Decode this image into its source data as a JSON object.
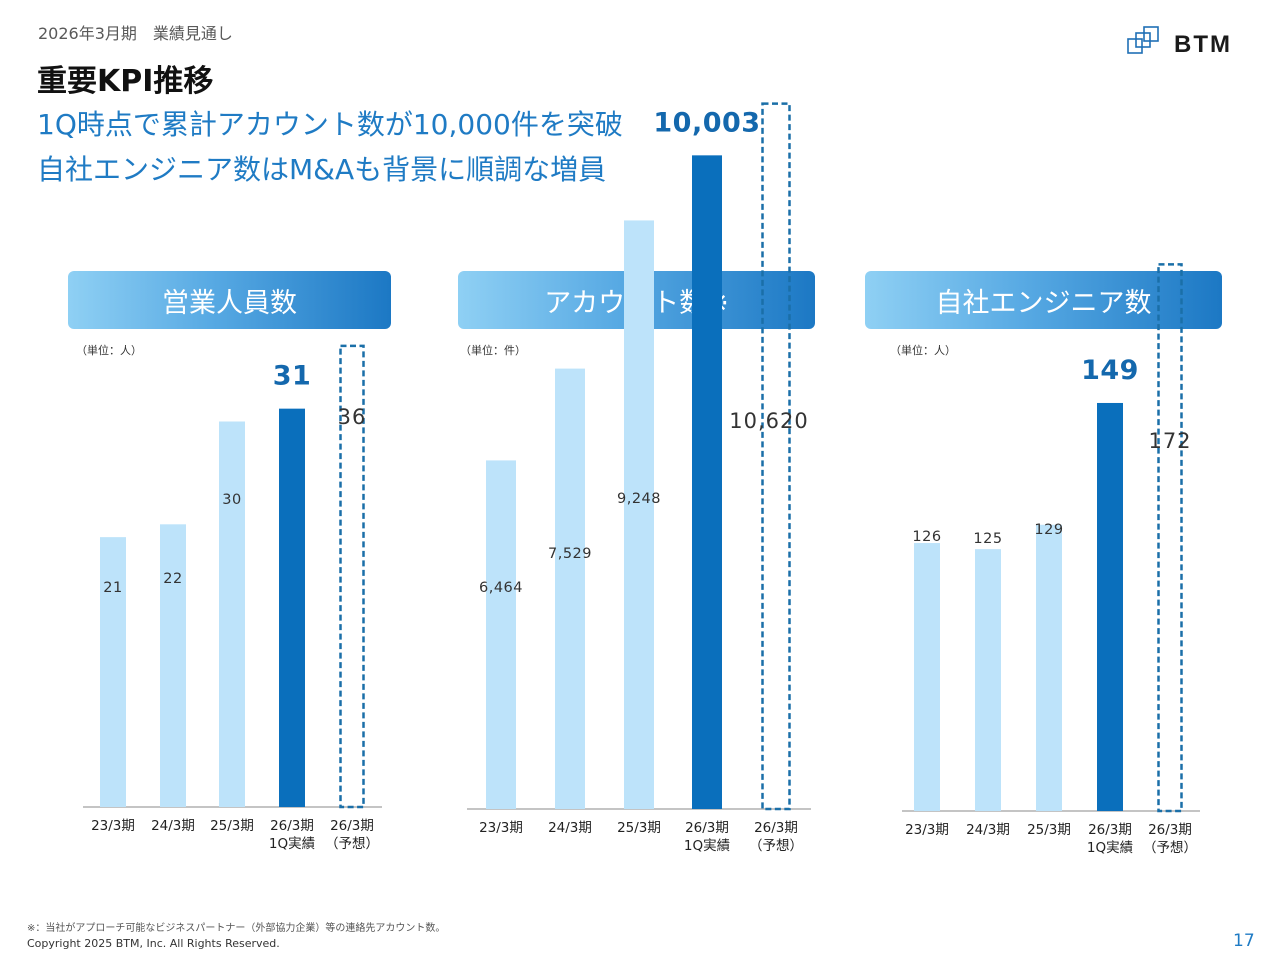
{
  "header": {
    "breadcrumb": "2026年3月期　業績見通し",
    "title": "重要KPI推移",
    "headline_1": "1Q時点で累計アカウント数が10,000件を突破",
    "headline_2": "自社エンジニア数はM&Aも背景に順調な増員",
    "logo_text": "BTM"
  },
  "colors": {
    "past_bar": "#bde3fa",
    "actual_bar": "#0a6fbc",
    "forecast_outline": "#1a6fa8",
    "highlight_text": "#1468ad"
  },
  "panels": [
    {
      "header": "営業人員数",
      "unit": "（単位：人）"
    },
    {
      "header": "アカウント数※",
      "unit": "（単位：件）"
    },
    {
      "header": "自社エンジニア数",
      "unit": "（単位：人）"
    }
  ],
  "chart_data": [
    {
      "type": "bar",
      "title": "営業人員数",
      "unit": "（単位：人）",
      "categories": [
        "23/3期",
        "24/3期",
        "25/3期",
        "26/3期\n1Q実績",
        "26/3期\n（予想）"
      ],
      "values": [
        21,
        22,
        30,
        31,
        36
      ],
      "labels": [
        "21",
        "22",
        "30",
        "31",
        "36"
      ],
      "bar_styles": [
        "past",
        "past",
        "past",
        "actual",
        "forecast"
      ]
    },
    {
      "type": "bar",
      "title": "アカウント数※",
      "unit": "（単位：件）",
      "categories": [
        "23/3期",
        "24/3期",
        "25/3期",
        "26/3期\n1Q実績",
        "26/3期\n（予想）"
      ],
      "values": [
        6464,
        7529,
        9248,
        10003,
        10620
      ],
      "labels": [
        "6,464",
        "7,529",
        "9,248",
        "10,003",
        "10,620"
      ],
      "bar_styles": [
        "past",
        "past",
        "past",
        "actual",
        "forecast"
      ]
    },
    {
      "type": "bar",
      "title": "自社エンジニア数",
      "unit": "（単位：人）",
      "categories": [
        "23/3期",
        "24/3期",
        "25/3期",
        "26/3期\n1Q実績",
        "26/3期\n（予想）"
      ],
      "values": [
        126,
        125,
        129,
        149,
        172
      ],
      "labels": [
        "126",
        "125",
        "129",
        "149",
        "172"
      ],
      "bar_styles": [
        "past",
        "past",
        "past",
        "actual",
        "forecast"
      ]
    }
  ],
  "footer": {
    "footnote": "※：当社がアプローチ可能なビジネスパートナー（外部協力企業）等の連絡先アカウント数。",
    "copyright": "Copyright 2025 BTM, Inc. All Rights Reserved.",
    "page_number": "17"
  }
}
